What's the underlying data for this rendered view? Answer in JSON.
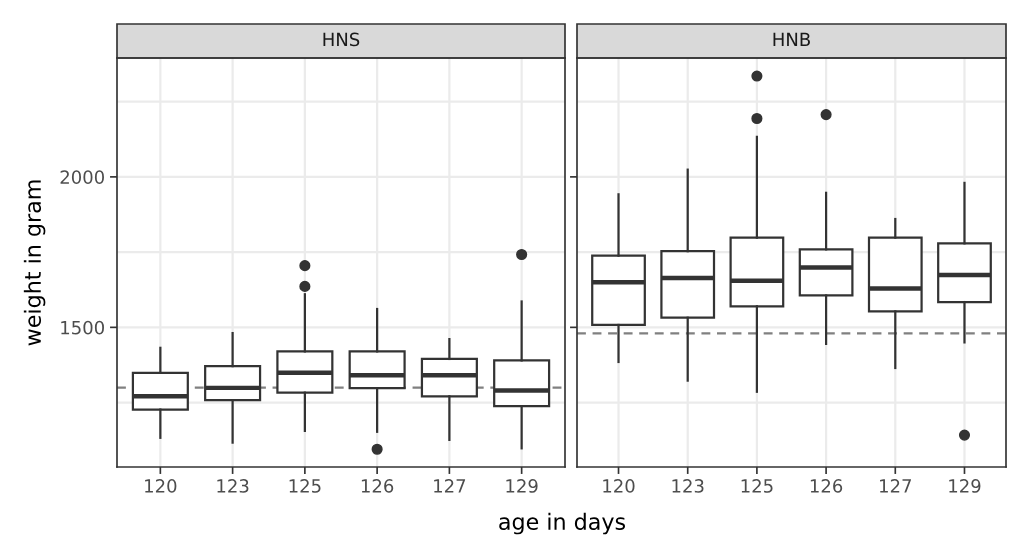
{
  "chart_data": [
    {
      "type": "box",
      "title": "HNS",
      "xlabel": "age in days",
      "ylabel": "weight in gram",
      "categories": [
        "120",
        "123",
        "125",
        "126",
        "127",
        "129"
      ],
      "boxes": [
        {
          "low": 1133,
          "q1": 1227,
          "median": 1271,
          "q3": 1349,
          "high": 1432
        },
        {
          "low": 1117,
          "q1": 1258,
          "median": 1299,
          "q3": 1371,
          "high": 1481
        },
        {
          "low": 1156,
          "q1": 1283,
          "median": 1349,
          "q3": 1420,
          "high": 1610,
          "outliers": [
            1636,
            1705
          ]
        },
        {
          "low": 1153,
          "q1": 1298,
          "median": 1341,
          "q3": 1420,
          "high": 1561,
          "outliers": [
            1095
          ]
        },
        {
          "low": 1126,
          "q1": 1271,
          "median": 1341,
          "q3": 1395,
          "high": 1461
        },
        {
          "low": 1098,
          "q1": 1238,
          "median": 1290,
          "q3": 1390,
          "high": 1586,
          "outliers": [
            1742
          ]
        }
      ],
      "color": "#333333",
      "ylim": [
        1036,
        2395
      ],
      "yticks": [
        {
          "value": 1250,
          "label": null
        },
        1500,
        {
          "value": 1750,
          "label": null
        },
        2000,
        {
          "value": 2250,
          "label": null
        }
      ],
      "grid": true,
      "ref_lines": [
        {
          "axis": "y",
          "value": 1300,
          "color": "#808080",
          "line_style": "dashed"
        }
      ]
    },
    {
      "type": "box",
      "title": "HNB",
      "categories": [
        "120",
        "123",
        "125",
        "126",
        "127",
        "129"
      ],
      "boxes": [
        {
          "low": 1385,
          "q1": 1508,
          "median": 1650,
          "q3": 1738,
          "high": 1942
        },
        {
          "low": 1323,
          "q1": 1532,
          "median": 1664,
          "q3": 1753,
          "high": 2024
        },
        {
          "low": 1286,
          "q1": 1570,
          "median": 1655,
          "q3": 1798,
          "high": 2133,
          "outliers": [
            2194,
            2335
          ]
        },
        {
          "low": 1445,
          "q1": 1606,
          "median": 1699,
          "q3": 1759,
          "high": 1947,
          "outliers": [
            2207
          ]
        },
        {
          "low": 1365,
          "q1": 1553,
          "median": 1629,
          "q3": 1798,
          "high": 1860
        },
        {
          "low": 1450,
          "q1": 1584,
          "median": 1674,
          "q3": 1779,
          "high": 1980,
          "outliers": [
            1142
          ]
        }
      ],
      "color": "#333333",
      "ylim": [
        1036,
        2395
      ],
      "yticks": [
        {
          "value": 1250,
          "label": null
        },
        1500,
        {
          "value": 1750,
          "label": null
        },
        2000,
        {
          "value": 2250,
          "label": null
        }
      ],
      "grid": true,
      "tick_labels": "x",
      "ref_lines": [
        {
          "axis": "y",
          "value": 1480,
          "color": "#808080",
          "line_style": "dashed"
        }
      ]
    }
  ]
}
